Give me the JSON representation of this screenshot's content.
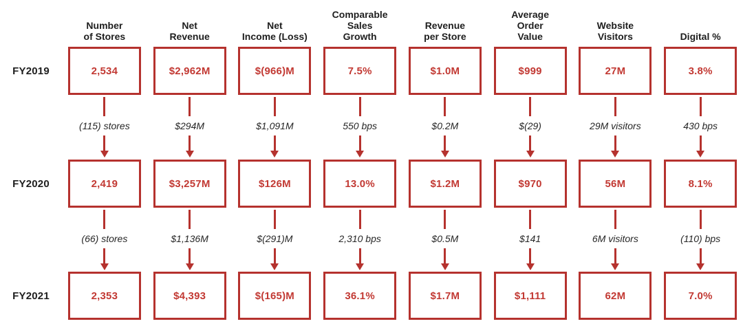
{
  "colors": {
    "accent": "#B5322E",
    "value_text": "#C23933",
    "header_text": "#1E1E1E",
    "delta_text": "#262626"
  },
  "chart_data": {
    "type": "table",
    "title": "",
    "legend_position": "none",
    "row_labels": [
      "FY2019",
      "FY2020",
      "FY2021"
    ],
    "metrics": [
      {
        "header": "Number\nof Stores",
        "fy2019": "2,534",
        "delta_fy2019_fy2020": "(115) stores",
        "fy2020": "2,419",
        "delta_fy2020_fy2021": "(66) stores",
        "fy2021": "2,353"
      },
      {
        "header": "Net\nRevenue",
        "fy2019": "$2,962M",
        "delta_fy2019_fy2020": "$294M",
        "fy2020": "$3,257M",
        "delta_fy2020_fy2021": "$1,136M",
        "fy2021": "$4,393"
      },
      {
        "header": "Net\nIncome (Loss)",
        "fy2019": "$(966)M",
        "delta_fy2019_fy2020": "$1,091M",
        "fy2020": "$126M",
        "delta_fy2020_fy2021": "$(291)M",
        "fy2021": "$(165)M"
      },
      {
        "header": "Comparable\nSales\nGrowth",
        "fy2019": "7.5%",
        "delta_fy2019_fy2020": "550 bps",
        "fy2020": "13.0%",
        "delta_fy2020_fy2021": "2,310 bps",
        "fy2021": "36.1%"
      },
      {
        "header": "Revenue\nper Store",
        "fy2019": "$1.0M",
        "delta_fy2019_fy2020": "$0.2M",
        "fy2020": "$1.2M",
        "delta_fy2020_fy2021": "$0.5M",
        "fy2021": "$1.7M"
      },
      {
        "header": "Average\nOrder\nValue",
        "fy2019": "$999",
        "delta_fy2019_fy2020": "$(29)",
        "fy2020": "$970",
        "delta_fy2020_fy2021": "$141",
        "fy2021": "$1,111"
      },
      {
        "header": "Website\nVisitors",
        "fy2019": "27M",
        "delta_fy2019_fy2020": "29M visitors",
        "fy2020": "56M",
        "delta_fy2020_fy2021": "6M visitors",
        "fy2021": "62M"
      },
      {
        "header": "Digital %",
        "fy2019": "3.8%",
        "delta_fy2019_fy2020": "430 bps",
        "fy2020": "8.1%",
        "delta_fy2020_fy2021": "(110) bps",
        "fy2021": "7.0%"
      }
    ]
  }
}
